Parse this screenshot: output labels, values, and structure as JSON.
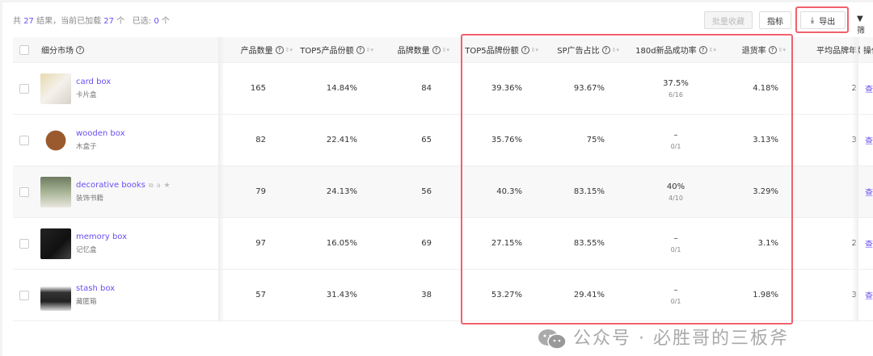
{
  "summary": {
    "prefix": "共",
    "total": "27",
    "mid": "结果，当前已加载",
    "loaded": "27",
    "unit": "个",
    "selected_label": "已选:",
    "selected": "0",
    "unit2": "个"
  },
  "toolbar": {
    "batch_fav": "批量收藏",
    "metrics": "指标",
    "export": "导出",
    "filter": "筛"
  },
  "columns": [
    "细分市场",
    "产品数量",
    "TOP5产品份额",
    "品牌数量",
    "TOP5品牌份额",
    "SP广告占比",
    "180d新品成功率",
    "退货率",
    "平均品牌年龄",
    "操作"
  ],
  "rows": [
    {
      "name": "card box",
      "cn": "卡片盒",
      "products": "165",
      "top5_product": "14.84%",
      "brands": "84",
      "top5_brand": "39.36%",
      "sp": "93.67%",
      "success": "37.5%",
      "success_frac": "6/16",
      "return": "4.18%",
      "age": "2",
      "op": "查"
    },
    {
      "name": "wooden box",
      "cn": "木盒子",
      "products": "82",
      "top5_product": "22.41%",
      "brands": "65",
      "top5_brand": "35.76%",
      "sp": "75%",
      "success": "–",
      "success_frac": "0/1",
      "return": "3.13%",
      "age": "3",
      "op": "查"
    },
    {
      "name": "decorative books",
      "cn": "装饰书籍",
      "products": "79",
      "top5_product": "24.13%",
      "brands": "56",
      "top5_brand": "40.3%",
      "sp": "83.15%",
      "success": "40%",
      "success_frac": "4/10",
      "return": "3.29%",
      "age": "",
      "op": "查"
    },
    {
      "name": "memory box",
      "cn": "记忆盒",
      "products": "97",
      "top5_product": "16.05%",
      "brands": "69",
      "top5_brand": "27.15%",
      "sp": "83.55%",
      "success": "–",
      "success_frac": "0/1",
      "return": "3.1%",
      "age": "2",
      "op": "查"
    },
    {
      "name": "stash box",
      "cn": "藏匿箱",
      "products": "57",
      "top5_product": "31.43%",
      "brands": "38",
      "top5_brand": "53.27%",
      "sp": "29.41%",
      "success": "–",
      "success_frac": "0/1",
      "return": "1.98%",
      "age": "3",
      "op": "查"
    }
  ],
  "watermark": "公众号 · 必胜哥的三板斧",
  "colors": {
    "accent": "#6b4df5",
    "highlight": "#f0616e"
  }
}
